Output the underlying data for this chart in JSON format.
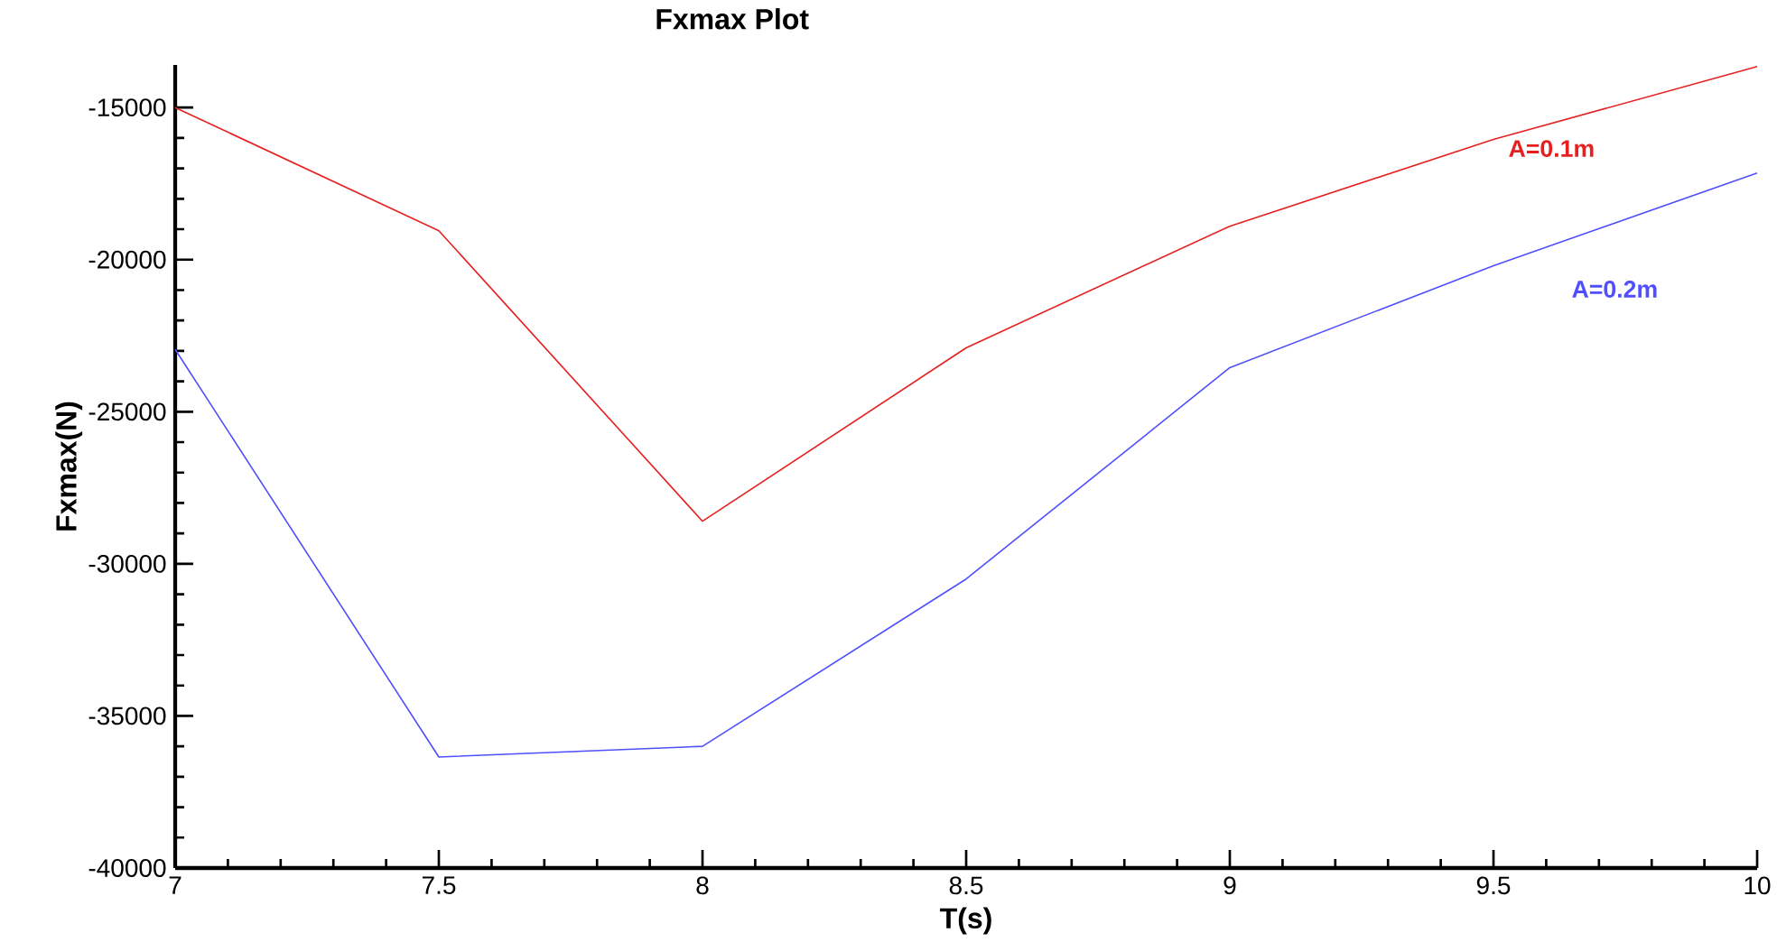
{
  "chart_data": {
    "type": "line",
    "title": "Fxmax Plot",
    "xlabel": "T(s)",
    "ylabel": "Fxmax(N)",
    "x": [
      7,
      7.5,
      8,
      8.5,
      9,
      9.5,
      10
    ],
    "series": [
      {
        "name": "A=0.1m",
        "color": "#e62020",
        "values": [
          -15000,
          -19050,
          -28600,
          -22900,
          -18900,
          -16050,
          -13650
        ]
      },
      {
        "name": "A=0.2m",
        "color": "#4f4fff",
        "values": [
          -22950,
          -36350,
          -36000,
          -30500,
          -23550,
          -20200,
          -17150
        ]
      }
    ],
    "xlim": [
      7,
      10
    ],
    "ylim": [
      -40000,
      -13600
    ],
    "xticks": [
      7,
      7.5,
      8,
      8.5,
      9,
      9.5,
      10
    ],
    "yticks": [
      -40000,
      -35000,
      -30000,
      -25000,
      -20000,
      -15000
    ],
    "grid": false,
    "legend": false,
    "marker": "none",
    "line_style": "solid"
  }
}
